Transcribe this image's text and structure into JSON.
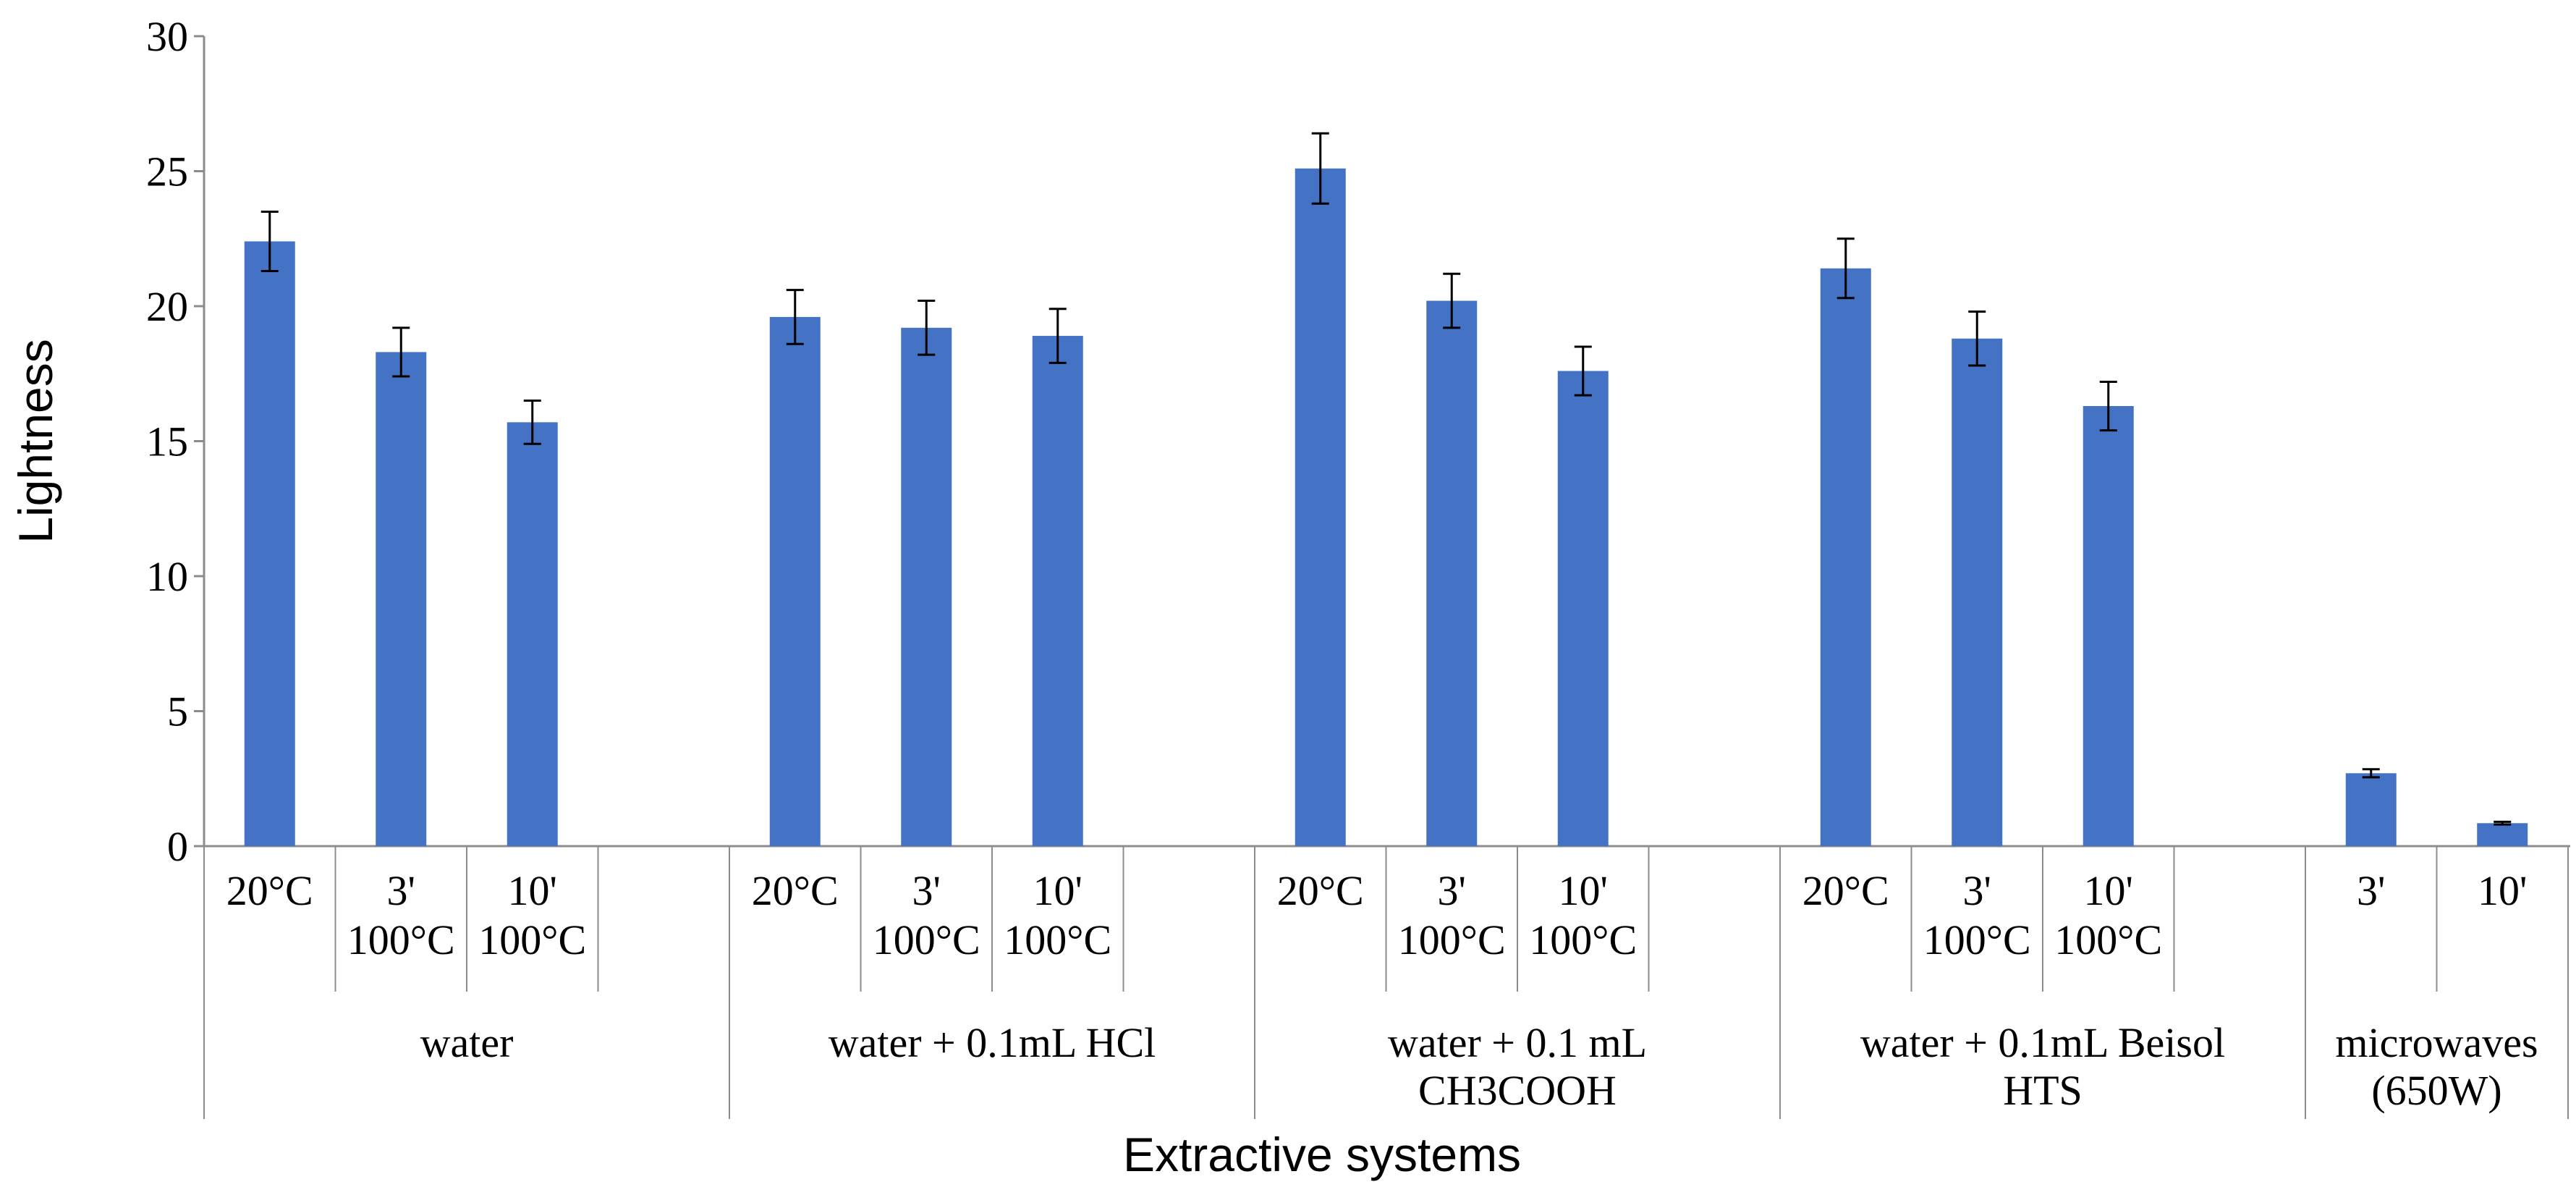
{
  "chart_data": {
    "type": "bar",
    "title": "",
    "xlabel": "Extractive systems",
    "ylabel": "Lightness",
    "ylim": [
      0,
      30
    ],
    "yticks": [
      0,
      5,
      10,
      15,
      20,
      25,
      30
    ],
    "color": "#4472C4",
    "groups": [
      {
        "label": [
          "water"
        ],
        "bars": [
          {
            "label": [
              "20°C"
            ],
            "value": 22.4,
            "error": 1.1
          },
          {
            "label": [
              "3'",
              "100°C"
            ],
            "value": 18.3,
            "error": 0.9
          },
          {
            "label": [
              "10'",
              "100°C"
            ],
            "value": 15.7,
            "error": 0.8
          }
        ]
      },
      {
        "label": [
          "water + 0.1mL HCl"
        ],
        "bars": [
          {
            "label": [
              "20°C"
            ],
            "value": 19.6,
            "error": 1.0
          },
          {
            "label": [
              "3'",
              "100°C"
            ],
            "value": 19.2,
            "error": 1.0
          },
          {
            "label": [
              "10'",
              "100°C"
            ],
            "value": 18.9,
            "error": 1.0
          }
        ]
      },
      {
        "label": [
          "water + 0.1 mL",
          "CH3COOH"
        ],
        "bars": [
          {
            "label": [
              "20°C"
            ],
            "value": 25.1,
            "error": 1.3
          },
          {
            "label": [
              "3'",
              "100°C"
            ],
            "value": 20.2,
            "error": 1.0
          },
          {
            "label": [
              "10'",
              "100°C"
            ],
            "value": 17.6,
            "error": 0.9
          }
        ]
      },
      {
        "label": [
          "water + 0.1mL Beisol",
          "HTS"
        ],
        "bars": [
          {
            "label": [
              "20°C"
            ],
            "value": 21.4,
            "error": 1.1
          },
          {
            "label": [
              "3'",
              "100°C"
            ],
            "value": 18.8,
            "error": 1.0
          },
          {
            "label": [
              "10'",
              "100°C"
            ],
            "value": 16.3,
            "error": 0.9
          }
        ]
      },
      {
        "label": [
          "microwaves",
          "(650W)"
        ],
        "bars": [
          {
            "label": [
              "3'"
            ],
            "value": 2.7,
            "error": 0.15
          },
          {
            "label": [
              "10'"
            ],
            "value": 0.85,
            "error": 0.05
          }
        ]
      }
    ]
  }
}
